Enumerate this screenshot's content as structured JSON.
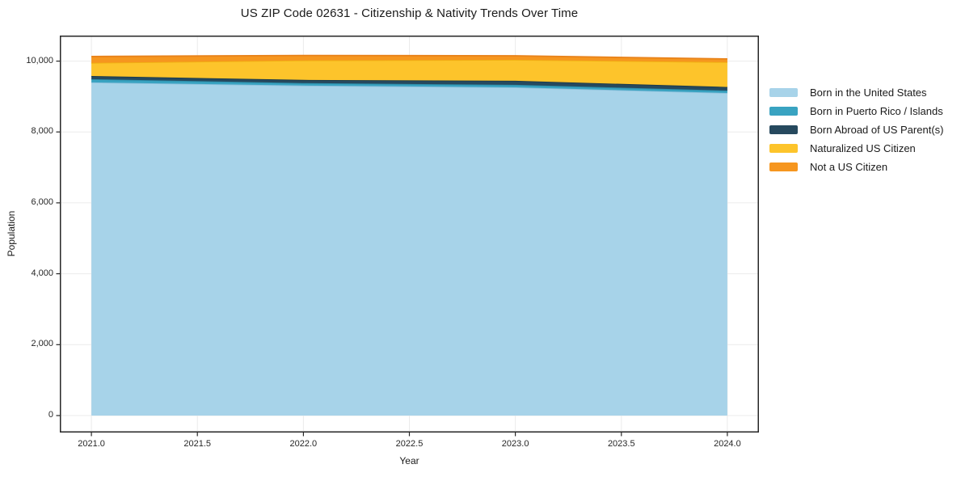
{
  "title": "US ZIP Code 02631 - Citizenship & Nativity Trends Over Time",
  "colors": {
    "figure_background": "#ffffff",
    "spine": "#262626",
    "grid": "#ebebeb",
    "tick": "#262626",
    "text": "#1a1a1a"
  },
  "chart_data": {
    "type": "area",
    "stacked": true,
    "title": "US ZIP Code 02631 - Citizenship & Nativity Trends Over Time",
    "xlabel": "Year",
    "ylabel": "Population",
    "x": [
      2021,
      2022,
      2023,
      2024
    ],
    "series": [
      {
        "name": "Born in the United States",
        "color": "#a7d3e9",
        "edge_color": "#8cc0dc",
        "values": [
          9400,
          9310,
          9260,
          9100
        ]
      },
      {
        "name": "Born in Puerto Rico / Islands",
        "color": "#39a3c1",
        "edge_color": "#2b8aa6",
        "values": [
          90,
          70,
          70,
          70
        ]
      },
      {
        "name": "Born Abroad of US Parent(s)",
        "color": "#26495e",
        "edge_color": "#1b3a4b",
        "values": [
          90,
          90,
          115,
          100
        ]
      },
      {
        "name": "Naturalized US Citizen",
        "color": "#fdc42b",
        "edge_color": "#f0b112",
        "values": [
          370,
          550,
          590,
          700
        ]
      },
      {
        "name": "Not a US Citizen",
        "color": "#f6961f",
        "edge_color": "#e8821a",
        "values": [
          180,
          140,
          115,
          90
        ]
      }
    ],
    "x_ticks": [
      "2021.0",
      "2021.5",
      "2022.0",
      "2022.5",
      "2023.0",
      "2023.5",
      "2024.0"
    ],
    "x_tick_values": [
      2021,
      2021.5,
      2022,
      2022.5,
      2023,
      2023.5,
      2024
    ],
    "y_ticks": [
      "0",
      "2,000",
      "4,000",
      "6,000",
      "8,000",
      "10,000"
    ],
    "y_tick_values": [
      0,
      2000,
      4000,
      6000,
      8000,
      10000
    ],
    "xlim": [
      2020.851,
      2024.149
    ],
    "ylim": [
      -480,
      10720
    ],
    "grid": true,
    "legend_position": "right"
  }
}
